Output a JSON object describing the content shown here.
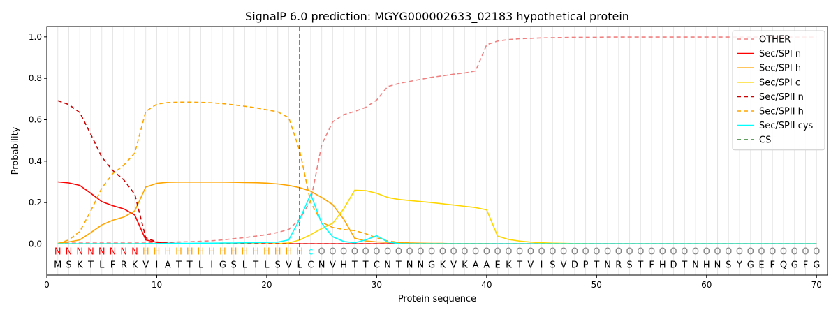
{
  "chart_data": {
    "type": "line",
    "title": "SignalP 6.0 prediction: MGYG000002633_02183 hypothetical protein",
    "xlabel": "Protein sequence",
    "ylabel": "Probability",
    "xlim": [
      0,
      71
    ],
    "ylim": [
      -0.15,
      1.05
    ],
    "xticks": [
      0,
      10,
      20,
      30,
      40,
      50,
      60,
      70
    ],
    "yticks": [
      0.0,
      0.2,
      0.4,
      0.6,
      0.8,
      1.0
    ],
    "legend_position": "top-right",
    "sequence": "MSKTLFRKVIATTLIGSLTLSVLCNVHTTCNTNNGKVKAAEKTVISVDPTNRSTFHDTNHNSYGEFQGFG",
    "region_labels": "NNNNNNNNHHHHHHHHHHHHHHHCOOOOOOOOOOOOOOOOOOOOOOOOOOOOOOOOOOOOOOOOOOOOOO",
    "region_colors": {
      "N": "#ff0000",
      "H": "#ffa500",
      "C": "#00ffff",
      "O": "#808080"
    },
    "cs_position": 23,
    "series": [
      {
        "name": "OTHER",
        "color": "#f08080",
        "dash": "6,4",
        "values": [
          0.003,
          0.004,
          0.005,
          0.005,
          0.005,
          0.005,
          0.005,
          0.005,
          0.005,
          0.007,
          0.008,
          0.01,
          0.011,
          0.013,
          0.016,
          0.02,
          0.026,
          0.031,
          0.038,
          0.045,
          0.056,
          0.07,
          0.12,
          0.21,
          0.48,
          0.59,
          0.625,
          0.64,
          0.66,
          0.695,
          0.76,
          0.775,
          0.785,
          0.795,
          0.805,
          0.812,
          0.82,
          0.826,
          0.836,
          0.962,
          0.98,
          0.987,
          0.991,
          0.993,
          0.995,
          0.996,
          0.997,
          0.998,
          0.998,
          0.998,
          0.999,
          0.999,
          0.999,
          0.999,
          0.999,
          0.999,
          0.999,
          0.999,
          0.999,
          0.999,
          0.999,
          0.999,
          0.999,
          0.999,
          0.999,
          0.999,
          0.999,
          0.999,
          0.999,
          0.999
        ]
      },
      {
        "name": "Sec/SPI n",
        "color": "#ff0000",
        "dash": "",
        "values": [
          0.3,
          0.295,
          0.283,
          0.245,
          0.205,
          0.185,
          0.17,
          0.14,
          0.02,
          0.008,
          0.004,
          0.002,
          0.001,
          0.001,
          0.001,
          0.001,
          0.001,
          0.001,
          0.001,
          0.001,
          0.001,
          0.001,
          0.001,
          0.001,
          0.001,
          0.001,
          0.001,
          0.001,
          0.001,
          0.001,
          0.001,
          0.001,
          0.001,
          0.001,
          0.001,
          0.001,
          0.001,
          0.001,
          0.001,
          0.001,
          0.001,
          0.001,
          0.001,
          0.001,
          0.001,
          0.001,
          0.001,
          0.001,
          0.001,
          0.001,
          0.001,
          0.001,
          0.001,
          0.001,
          0.001,
          0.001,
          0.001,
          0.001,
          0.001,
          0.001,
          0.001,
          0.001,
          0.001,
          0.001,
          0.001,
          0.001,
          0.001,
          0.001,
          0.001,
          0.001
        ]
      },
      {
        "name": "Sec/SPI h",
        "color": "#ffa500",
        "dash": "",
        "values": [
          0.003,
          0.01,
          0.02,
          0.055,
          0.092,
          0.115,
          0.13,
          0.16,
          0.275,
          0.293,
          0.298,
          0.299,
          0.299,
          0.299,
          0.299,
          0.299,
          0.298,
          0.297,
          0.296,
          0.294,
          0.29,
          0.283,
          0.272,
          0.255,
          0.225,
          0.19,
          0.12,
          0.028,
          0.015,
          0.01,
          0.008,
          0.006,
          0.005,
          0.004,
          0.003,
          0.003,
          0.002,
          0.002,
          0.002,
          0.002,
          0.001,
          0.001,
          0.001,
          0.001,
          0.001,
          0.001,
          0.001,
          0.001,
          0.001,
          0.001,
          0.001,
          0.001,
          0.001,
          0.001,
          0.001,
          0.001,
          0.001,
          0.001,
          0.001,
          0.001,
          0.001,
          0.001,
          0.001,
          0.001,
          0.001,
          0.001,
          0.001,
          0.001,
          0.001,
          0.001
        ]
      },
      {
        "name": "Sec/SPI c",
        "color": "#ffd700",
        "dash": "",
        "values": [
          0.001,
          0.001,
          0.001,
          0.001,
          0.001,
          0.001,
          0.001,
          0.001,
          0.001,
          0.001,
          0.001,
          0.001,
          0.001,
          0.001,
          0.001,
          0.001,
          0.001,
          0.001,
          0.001,
          0.001,
          0.002,
          0.005,
          0.02,
          0.045,
          0.075,
          0.1,
          0.17,
          0.26,
          0.258,
          0.245,
          0.225,
          0.215,
          0.21,
          0.205,
          0.2,
          0.194,
          0.188,
          0.182,
          0.176,
          0.165,
          0.038,
          0.022,
          0.014,
          0.009,
          0.006,
          0.004,
          0.003,
          0.002,
          0.002,
          0.001,
          0.001,
          0.001,
          0.001,
          0.001,
          0.001,
          0.001,
          0.001,
          0.001,
          0.001,
          0.001,
          0.001,
          0.001,
          0.001,
          0.001,
          0.001,
          0.001,
          0.001,
          0.001,
          0.001,
          0.001
        ]
      },
      {
        "name": "Sec/SPII n",
        "color": "#cc0000",
        "dash": "6,4",
        "values": [
          0.692,
          0.673,
          0.635,
          0.53,
          0.42,
          0.355,
          0.31,
          0.24,
          0.03,
          0.01,
          0.005,
          0.003,
          0.002,
          0.002,
          0.001,
          0.001,
          0.001,
          0.001,
          0.001,
          0.001,
          0.001,
          0.001,
          0.001,
          0.001,
          0.001,
          0.001,
          0.001,
          0.001,
          0.001,
          0.001,
          0.001,
          0.001,
          0.001,
          0.001,
          0.001,
          0.001,
          0.001,
          0.001,
          0.001,
          0.001,
          0.001,
          0.001,
          0.001,
          0.001,
          0.001,
          0.001,
          0.001,
          0.001,
          0.001,
          0.001,
          0.001,
          0.001,
          0.001,
          0.001,
          0.001,
          0.001,
          0.001,
          0.001,
          0.001,
          0.001,
          0.001,
          0.001,
          0.001,
          0.001,
          0.001,
          0.001,
          0.001,
          0.001,
          0.001,
          0.001
        ]
      },
      {
        "name": "Sec/SPII h",
        "color": "#ffa500",
        "dash": "6,4",
        "values": [
          0.002,
          0.02,
          0.06,
          0.16,
          0.27,
          0.34,
          0.38,
          0.44,
          0.64,
          0.675,
          0.683,
          0.685,
          0.685,
          0.684,
          0.682,
          0.678,
          0.672,
          0.665,
          0.658,
          0.648,
          0.638,
          0.61,
          0.45,
          0.2,
          0.105,
          0.08,
          0.07,
          0.065,
          0.05,
          0.03,
          0.015,
          0.008,
          0.005,
          0.003,
          0.002,
          0.002,
          0.001,
          0.001,
          0.001,
          0.001,
          0.001,
          0.001,
          0.001,
          0.001,
          0.001,
          0.001,
          0.001,
          0.001,
          0.001,
          0.001,
          0.001,
          0.001,
          0.001,
          0.001,
          0.001,
          0.001,
          0.001,
          0.001,
          0.001,
          0.001,
          0.001,
          0.001,
          0.001,
          0.001,
          0.001,
          0.001,
          0.001,
          0.001,
          0.001,
          0.001
        ]
      },
      {
        "name": "Sec/SPII cys",
        "color": "#00ffff",
        "dash": "",
        "values": [
          0.001,
          0.001,
          0.001,
          0.001,
          0.001,
          0.001,
          0.001,
          0.001,
          0.002,
          0.002,
          0.003,
          0.003,
          0.003,
          0.004,
          0.004,
          0.005,
          0.005,
          0.006,
          0.007,
          0.008,
          0.009,
          0.02,
          0.12,
          0.24,
          0.1,
          0.035,
          0.012,
          0.006,
          0.02,
          0.04,
          0.01,
          0.002,
          0.001,
          0.001,
          0.001,
          0.001,
          0.001,
          0.001,
          0.001,
          0.001,
          0.001,
          0.001,
          0.001,
          0.001,
          0.001,
          0.001,
          0.001,
          0.001,
          0.001,
          0.001,
          0.001,
          0.001,
          0.001,
          0.001,
          0.001,
          0.001,
          0.001,
          0.001,
          0.001,
          0.001,
          0.001,
          0.001,
          0.001,
          0.001,
          0.001,
          0.001,
          0.001,
          0.001,
          0.001,
          0.001
        ]
      },
      {
        "name": "CS",
        "color": "#006400",
        "dash": "6,4",
        "values": []
      }
    ]
  }
}
